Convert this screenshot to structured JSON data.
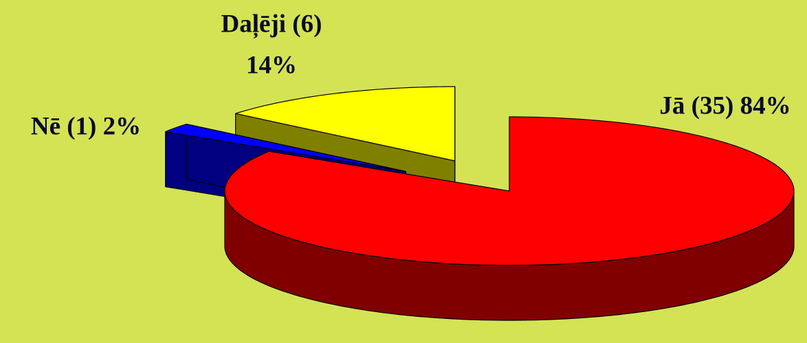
{
  "chart_data": {
    "type": "pie",
    "categories": [
      "Jā",
      "Nē",
      "Daļēji"
    ],
    "counts": [
      35,
      1,
      6
    ],
    "values": [
      84,
      2,
      14
    ],
    "value_labels": [
      [
        "Jā (35) 84%"
      ],
      [
        "Nē (1) 2%"
      ],
      [
        "Daļēji (6)",
        "14%"
      ]
    ],
    "colors": [
      "#ff0000",
      "#0000ff",
      "#ffff00"
    ],
    "side_colors": [
      "#800000",
      "#000080",
      "#808000"
    ],
    "background": "#d3e354"
  }
}
